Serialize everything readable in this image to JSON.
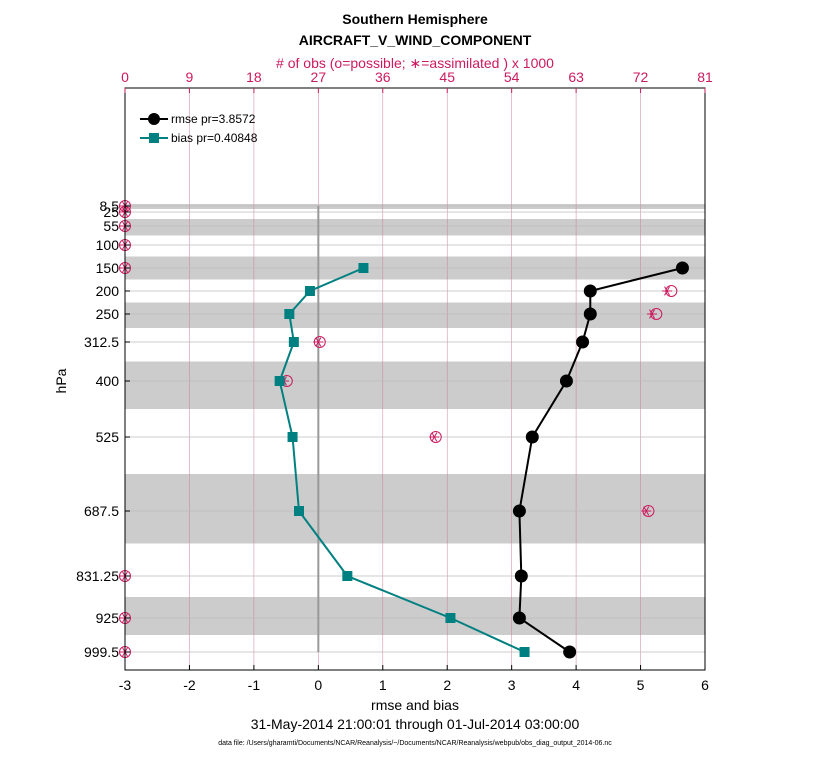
{
  "chart_data": {
    "type": "line",
    "title": "Southern Hemisphere",
    "subtitle": "AIRCRAFT_V_WIND_COMPONENT",
    "top_axis_label": "# of obs (o=possible; ∗=assimilated ) x 1000",
    "xlabel": "rmse and bias",
    "ylabel": "hPa",
    "date_range": "31-May-2014 21:00:01 through 01-Jul-2014 03:00:00",
    "footer": "data file: /Users/gharamti/Documents/NCAR/Reanalysis/~/Documents/NCAR/Reanalysis/webpub/obs_diag_output_2014-06.nc",
    "xlim": [
      -3,
      6
    ],
    "x_ticks": [
      "-3",
      "-2",
      "-1",
      "0",
      "1",
      "2",
      "3",
      "4",
      "5",
      "6"
    ],
    "top_xlim": [
      0,
      81
    ],
    "top_ticks": [
      "0",
      "9",
      "18",
      "27",
      "36",
      "45",
      "54",
      "63",
      "72",
      "81"
    ],
    "y_levels": [
      8.5,
      25,
      55,
      100,
      150,
      200,
      250,
      312.5,
      400,
      525,
      687.5,
      831.25,
      925,
      999.5
    ],
    "y_tick_labels": [
      "8.5",
      "25",
      "55",
      "100",
      "150",
      "200",
      "250",
      "312.5",
      "400",
      "525",
      "687.5",
      "831.25",
      "925",
      "999.5"
    ],
    "series": [
      {
        "name": "rmse pr=3.8572",
        "color": "#000000",
        "marker": "circle",
        "levels": [
          150,
          200,
          250,
          312.5,
          400,
          525,
          687.5,
          831.25,
          925,
          999.5
        ],
        "values": [
          5.65,
          4.22,
          4.22,
          4.1,
          3.85,
          3.32,
          3.12,
          3.15,
          3.12,
          3.9
        ]
      },
      {
        "name": "bias pr=0.40848",
        "color": "#008080",
        "marker": "square",
        "levels": [
          150,
          200,
          250,
          312.5,
          400,
          525,
          687.5,
          831.25,
          925,
          999.5
        ],
        "values": [
          0.7,
          -0.13,
          -0.45,
          -0.38,
          -0.6,
          -0.4,
          -0.3,
          0.45,
          2.05,
          3.2
        ]
      }
    ],
    "obs_counts": {
      "color": "#cc1a5e",
      "levels": [
        8.5,
        25,
        55,
        100,
        150,
        200,
        250,
        312.5,
        400,
        525,
        687.5,
        831.25,
        925,
        999.5
      ],
      "possible": [
        0,
        0,
        0,
        0,
        0,
        76.3,
        74.2,
        27.2,
        22.6,
        43.4,
        73.1,
        0,
        0,
        0
      ],
      "assimilated": [
        0,
        0,
        0,
        0,
        0,
        75.7,
        73.6,
        27.0,
        22.2,
        43.2,
        72.8,
        0,
        0,
        0
      ]
    },
    "grid": true,
    "legend_position": "top-left"
  }
}
